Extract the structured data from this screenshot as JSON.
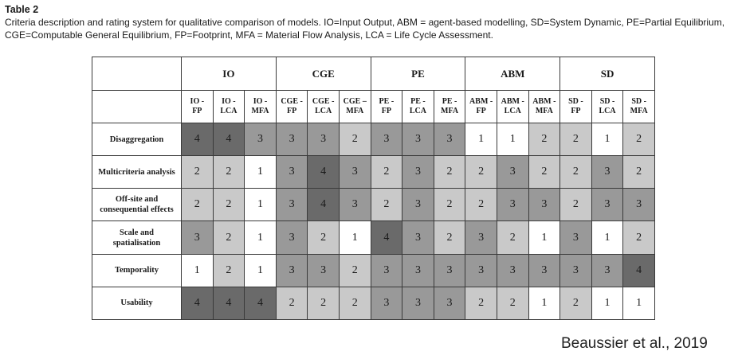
{
  "caption": {
    "label": "Table 2",
    "text": "Criteria description and rating system for qualitative comparison of models. IO=Input Output, ABM = agent-based modelling, SD=System Dynamic, PE=Partial Equilibrium, CGE=Computable General Equilibrium, FP=Footprint, MFA = Material Flow Analysis, LCA = Life Cycle Assessment."
  },
  "groups": [
    "IO",
    "CGE",
    "PE",
    "ABM",
    "SD"
  ],
  "columns": [
    [
      "IO -",
      "FP"
    ],
    [
      "IO -",
      "LCA"
    ],
    [
      "IO -",
      "MFA"
    ],
    [
      "CGE -",
      "FP"
    ],
    [
      "CGE -",
      "LCA"
    ],
    [
      "CGE –",
      "MFA"
    ],
    [
      "PE -",
      "FP"
    ],
    [
      "PE -",
      "LCA"
    ],
    [
      "PE -",
      "MFA"
    ],
    [
      "ABM -",
      "FP"
    ],
    [
      "ABM -",
      "LCA"
    ],
    [
      "ABM -",
      "MFA"
    ],
    [
      "SD -",
      "FP"
    ],
    [
      "SD -",
      "LCA"
    ],
    [
      "SD -",
      "MFA"
    ]
  ],
  "rows": [
    {
      "criterion": [
        "Disaggregation"
      ],
      "values": [
        4,
        4,
        3,
        3,
        3,
        2,
        3,
        3,
        3,
        1,
        1,
        2,
        2,
        1,
        2
      ]
    },
    {
      "criterion": [
        "Multicriteria analysis"
      ],
      "values": [
        2,
        2,
        1,
        3,
        4,
        3,
        2,
        3,
        2,
        2,
        3,
        2,
        2,
        3,
        2
      ]
    },
    {
      "criterion": [
        "Off-site and",
        "consequential effects"
      ],
      "values": [
        2,
        2,
        1,
        3,
        4,
        3,
        2,
        3,
        2,
        2,
        3,
        3,
        2,
        3,
        3
      ]
    },
    {
      "criterion": [
        "Scale and",
        "spatialisation"
      ],
      "values": [
        3,
        2,
        1,
        3,
        2,
        1,
        4,
        3,
        2,
        3,
        2,
        1,
        3,
        1,
        2
      ]
    },
    {
      "criterion": [
        "Temporality"
      ],
      "values": [
        1,
        2,
        1,
        3,
        3,
        2,
        3,
        3,
        3,
        3,
        3,
        3,
        3,
        3,
        4
      ]
    },
    {
      "criterion": [
        "Usability"
      ],
      "values": [
        4,
        4,
        4,
        2,
        2,
        2,
        3,
        3,
        3,
        2,
        2,
        1,
        2,
        1,
        1
      ]
    }
  ],
  "shade_colors": {
    "1": "#ffffff",
    "2": "#c9c9c9",
    "3": "#999999",
    "4": "#6a6a6a"
  },
  "credit": "Beaussier et al., 2019"
}
